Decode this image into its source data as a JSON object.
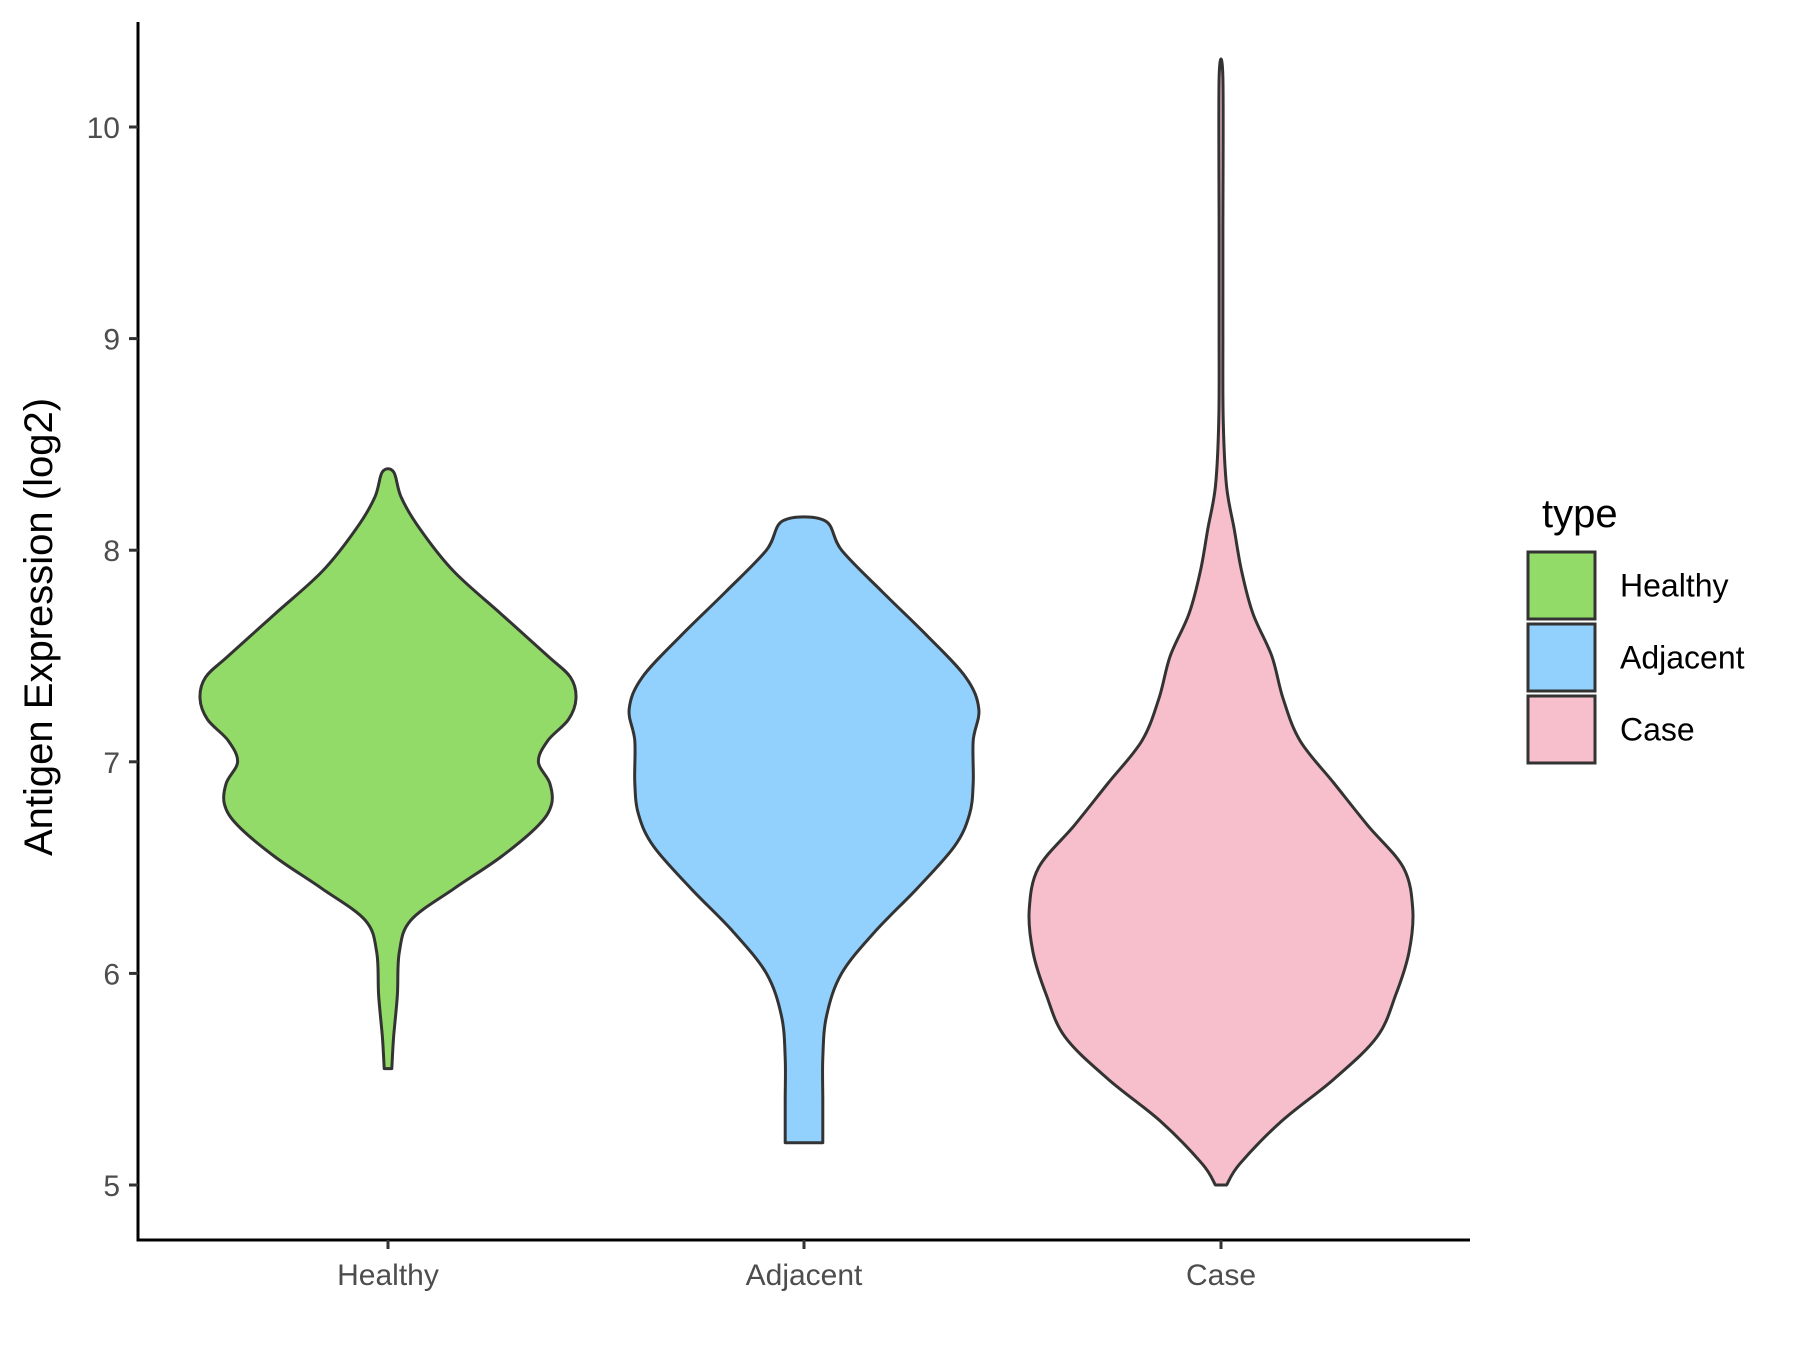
{
  "chart_data": {
    "type": "violin",
    "ylabel": "Antigen Expression (log2)",
    "xlabel": "",
    "ylim": [
      4.75,
      10.5
    ],
    "yticks": [
      5,
      6,
      7,
      8,
      9,
      10
    ],
    "categories": [
      "Healthy",
      "Adjacent",
      "Case"
    ],
    "legend": {
      "title": "type",
      "placement": "right",
      "items": [
        {
          "label": "Healthy",
          "color": "#93DB69"
        },
        {
          "label": "Adjacent",
          "color": "#92D1FE"
        },
        {
          "label": "Case",
          "color": "#F7BFCB"
        }
      ]
    },
    "series": [
      {
        "category": "Healthy",
        "color": "#93DB69",
        "range": [
          5.55,
          8.37
        ],
        "profile": [
          [
            5.55,
            0.02
          ],
          [
            5.7,
            0.03
          ],
          [
            5.9,
            0.05
          ],
          [
            6.1,
            0.06
          ],
          [
            6.25,
            0.12
          ],
          [
            6.4,
            0.35
          ],
          [
            6.55,
            0.6
          ],
          [
            6.7,
            0.8
          ],
          [
            6.8,
            0.87
          ],
          [
            6.9,
            0.86
          ],
          [
            7.0,
            0.8
          ],
          [
            7.1,
            0.85
          ],
          [
            7.2,
            0.96
          ],
          [
            7.3,
            1.0
          ],
          [
            7.4,
            0.97
          ],
          [
            7.5,
            0.85
          ],
          [
            7.7,
            0.6
          ],
          [
            7.9,
            0.35
          ],
          [
            8.1,
            0.17
          ],
          [
            8.25,
            0.07
          ],
          [
            8.37,
            0.03
          ]
        ]
      },
      {
        "category": "Adjacent",
        "color": "#92D1FE",
        "range": [
          5.2,
          8.14
        ],
        "profile": [
          [
            5.2,
            0.1
          ],
          [
            5.4,
            0.1
          ],
          [
            5.6,
            0.1
          ],
          [
            5.8,
            0.12
          ],
          [
            6.0,
            0.2
          ],
          [
            6.2,
            0.38
          ],
          [
            6.4,
            0.6
          ],
          [
            6.6,
            0.8
          ],
          [
            6.75,
            0.88
          ],
          [
            6.9,
            0.9
          ],
          [
            7.1,
            0.9
          ],
          [
            7.25,
            0.93
          ],
          [
            7.4,
            0.86
          ],
          [
            7.6,
            0.65
          ],
          [
            7.8,
            0.42
          ],
          [
            8.0,
            0.2
          ],
          [
            8.14,
            0.11
          ]
        ]
      },
      {
        "category": "Case",
        "color": "#F7BFCB",
        "range": [
          5.0,
          10.23
        ],
        "profile": [
          [
            5.0,
            0.03
          ],
          [
            5.1,
            0.1
          ],
          [
            5.3,
            0.32
          ],
          [
            5.5,
            0.6
          ],
          [
            5.7,
            0.83
          ],
          [
            5.9,
            0.93
          ],
          [
            6.1,
            1.0
          ],
          [
            6.3,
            1.02
          ],
          [
            6.5,
            0.97
          ],
          [
            6.7,
            0.78
          ],
          [
            6.9,
            0.6
          ],
          [
            7.1,
            0.42
          ],
          [
            7.3,
            0.33
          ],
          [
            7.5,
            0.27
          ],
          [
            7.7,
            0.17
          ],
          [
            7.9,
            0.11
          ],
          [
            8.1,
            0.07
          ],
          [
            8.3,
            0.03
          ],
          [
            8.6,
            0.012
          ],
          [
            9.0,
            0.01
          ],
          [
            9.5,
            0.01
          ],
          [
            10.23,
            0.01
          ]
        ]
      }
    ]
  }
}
